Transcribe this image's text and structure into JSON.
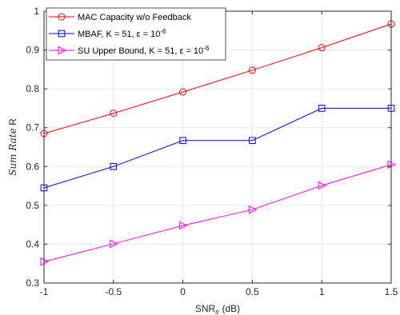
{
  "chart_data": {
    "type": "line",
    "xlabel_main": "SNR",
    "xlabel_sub": "tr",
    "xlabel_unit": " (dB)",
    "ylabel_italic": "Sum Rate",
    "ylabel_tail": " R",
    "xlim": [
      -1,
      1.5
    ],
    "ylim": [
      0.3,
      1
    ],
    "x_ticks": [
      -1,
      -0.5,
      0,
      0.5,
      1,
      1.5
    ],
    "x_tick_labels": [
      "-1",
      "-0.5",
      "0",
      "0.5",
      "1",
      "1.5"
    ],
    "y_ticks": [
      0.3,
      0.4,
      0.5,
      0.6,
      0.7,
      0.8,
      0.9,
      1
    ],
    "y_tick_labels": [
      "0.3",
      "0.4",
      "0.5",
      "0.6",
      "0.7",
      "0.8",
      "0.9",
      "1"
    ],
    "grid": true,
    "legend_position": "top-left",
    "x": [
      -1,
      -0.5,
      0,
      0.5,
      1,
      1.5
    ],
    "series": [
      {
        "name": "MAC Capacity w/o Feedback",
        "name_base": "MAC Capacity w/o Feedback",
        "name_sup": "",
        "color": "#ff0000",
        "marker": "circle",
        "values": [
          0.685,
          0.737,
          0.792,
          0.848,
          0.906,
          0.967
        ]
      },
      {
        "name": "MBAF, K = 51, ε = 10^-6",
        "name_base": "MBAF, K = 51, ε = 10",
        "name_sup": "-6",
        "color": "#0000ff",
        "marker": "square",
        "values": [
          0.545,
          0.6,
          0.667,
          0.667,
          0.75,
          0.75
        ]
      },
      {
        "name": "SU Upper Bound, K = 51, ε = 10^-6",
        "name_base": "SU Upper Bound, K = 51, ε = 10",
        "name_sup": "-6",
        "color": "#ff00ff",
        "marker": "triangle-right",
        "values": [
          0.355,
          0.401,
          0.448,
          0.489,
          0.551,
          0.605
        ]
      }
    ]
  }
}
